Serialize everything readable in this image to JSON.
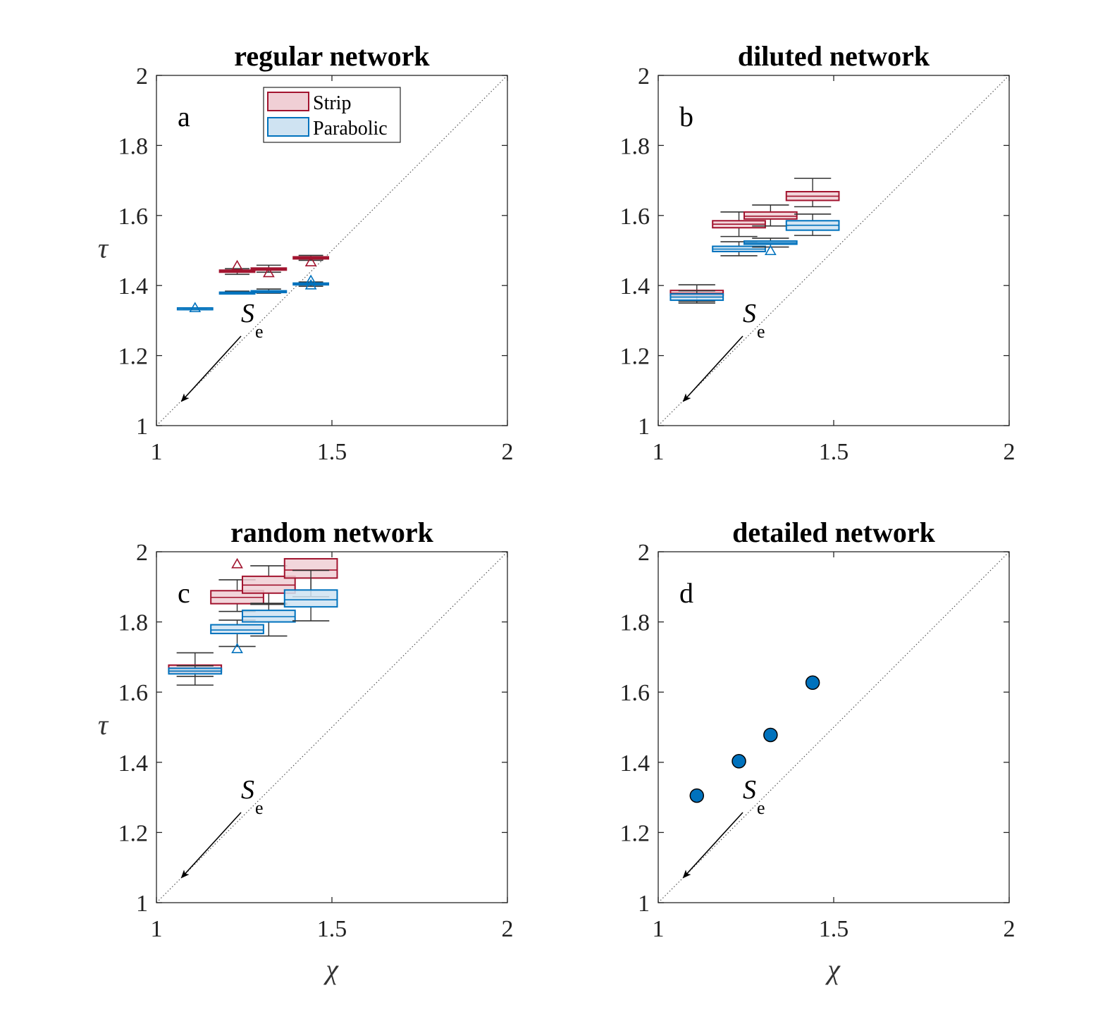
{
  "colors": {
    "strip": "#a2142f",
    "strip_fill": "#f0cfd5",
    "parabolic": "#0072bd",
    "parabolic_fill": "#cfe3f2",
    "whisker": "#333333",
    "dot": "#0072bd"
  },
  "legend": [
    {
      "label": "Strip",
      "series": "strip"
    },
    {
      "label": "Parabolic",
      "series": "parabolic"
    }
  ],
  "annotation": {
    "main": "S",
    "sub": "e"
  },
  "chart_data": [
    {
      "id": "a",
      "panel_label": "a",
      "type": "box",
      "title": "regular network",
      "xlabel": "",
      "ylabel": "τ",
      "xlim": [
        1,
        2
      ],
      "ylim": [
        1,
        2
      ],
      "xticks": [
        "1",
        "1.5",
        "2"
      ],
      "yticks": [
        "1",
        "1.2",
        "1.4",
        "1.6",
        "1.8",
        "2"
      ],
      "show_legend": true,
      "boxes": [
        {
          "series": "strip",
          "chi": 1.23,
          "half_width": 0.05,
          "q1": 1.438,
          "median": 1.441,
          "q3": 1.444,
          "wlo": 1.432,
          "whi": 1.448,
          "outliers": [
            1.456
          ]
        },
        {
          "series": "strip",
          "chi": 1.32,
          "half_width": 0.05,
          "q1": 1.444,
          "median": 1.447,
          "q3": 1.45,
          "wlo": 1.438,
          "whi": 1.458,
          "outliers": [
            1.436
          ]
        },
        {
          "series": "strip",
          "chi": 1.44,
          "half_width": 0.05,
          "q1": 1.476,
          "median": 1.479,
          "q3": 1.482,
          "wlo": 1.472,
          "whi": 1.486,
          "outliers": [
            1.467
          ]
        },
        {
          "series": "parabolic",
          "chi": 1.11,
          "half_width": 0.05,
          "q1": 1.334,
          "median": 1.335,
          "q3": 1.336,
          "wlo": 1.334,
          "whi": 1.336,
          "outliers": [
            1.336
          ]
        },
        {
          "series": "parabolic",
          "chi": 1.23,
          "half_width": 0.05,
          "q1": 1.378,
          "median": 1.379,
          "q3": 1.381,
          "wlo": 1.376,
          "whi": 1.384,
          "outliers": []
        },
        {
          "series": "parabolic",
          "chi": 1.32,
          "half_width": 0.05,
          "q1": 1.381,
          "median": 1.383,
          "q3": 1.385,
          "wlo": 1.378,
          "whi": 1.39,
          "outliers": []
        },
        {
          "series": "parabolic",
          "chi": 1.44,
          "half_width": 0.05,
          "q1": 1.403,
          "median": 1.405,
          "q3": 1.407,
          "wlo": 1.398,
          "whi": 1.41,
          "outliers": [
            1.414,
            1.401
          ]
        }
      ],
      "points": []
    },
    {
      "id": "b",
      "panel_label": "b",
      "type": "box",
      "title": "diluted network",
      "xlabel": "",
      "ylabel": "",
      "xlim": [
        1,
        2
      ],
      "ylim": [
        1,
        2
      ],
      "xticks": [
        "1",
        "1.5",
        "2"
      ],
      "yticks": [
        "1",
        "1.2",
        "1.4",
        "1.6",
        "1.8",
        "2"
      ],
      "show_legend": false,
      "boxes": [
        {
          "series": "strip",
          "chi": 1.11,
          "half_width": 0.075,
          "q1": 1.372,
          "median": 1.378,
          "q3": 1.386,
          "wlo": 1.355,
          "whi": 1.402,
          "outliers": []
        },
        {
          "series": "strip",
          "chi": 1.23,
          "half_width": 0.075,
          "q1": 1.565,
          "median": 1.575,
          "q3": 1.585,
          "wlo": 1.54,
          "whi": 1.61,
          "outliers": []
        },
        {
          "series": "strip",
          "chi": 1.32,
          "half_width": 0.075,
          "q1": 1.59,
          "median": 1.598,
          "q3": 1.61,
          "wlo": 1.57,
          "whi": 1.63,
          "outliers": []
        },
        {
          "series": "strip",
          "chi": 1.44,
          "half_width": 0.075,
          "q1": 1.643,
          "median": 1.655,
          "q3": 1.668,
          "wlo": 1.625,
          "whi": 1.706,
          "outliers": []
        },
        {
          "series": "parabolic",
          "chi": 1.11,
          "half_width": 0.075,
          "q1": 1.358,
          "median": 1.367,
          "q3": 1.376,
          "wlo": 1.35,
          "whi": 1.385,
          "outliers": []
        },
        {
          "series": "parabolic",
          "chi": 1.23,
          "half_width": 0.075,
          "q1": 1.497,
          "median": 1.504,
          "q3": 1.512,
          "wlo": 1.485,
          "whi": 1.525,
          "outliers": []
        },
        {
          "series": "parabolic",
          "chi": 1.32,
          "half_width": 0.075,
          "q1": 1.518,
          "median": 1.522,
          "q3": 1.527,
          "wlo": 1.51,
          "whi": 1.535,
          "outliers": [
            1.499
          ]
        },
        {
          "series": "parabolic",
          "chi": 1.44,
          "half_width": 0.075,
          "q1": 1.558,
          "median": 1.572,
          "q3": 1.585,
          "wlo": 1.543,
          "whi": 1.604,
          "outliers": []
        }
      ],
      "points": []
    },
    {
      "id": "c",
      "panel_label": "c",
      "type": "box",
      "title": "random network",
      "xlabel": "χ",
      "ylabel": "τ",
      "xlim": [
        1,
        2
      ],
      "ylim": [
        1,
        2
      ],
      "xticks": [
        "1",
        "1.5",
        "2"
      ],
      "yticks": [
        "1",
        "1.2",
        "1.4",
        "1.6",
        "1.8",
        "2"
      ],
      "show_legend": false,
      "boxes": [
        {
          "series": "strip",
          "chi": 1.11,
          "half_width": 0.075,
          "q1": 1.658,
          "median": 1.667,
          "q3": 1.677,
          "wlo": 1.62,
          "whi": 1.712,
          "outliers": []
        },
        {
          "series": "strip",
          "chi": 1.23,
          "half_width": 0.075,
          "q1": 1.852,
          "median": 1.87,
          "q3": 1.889,
          "wlo": 1.83,
          "whi": 1.92,
          "outliers": [
            1.965
          ]
        },
        {
          "series": "strip",
          "chi": 1.32,
          "half_width": 0.075,
          "q1": 1.882,
          "median": 1.905,
          "q3": 1.93,
          "wlo": 1.85,
          "whi": 1.96,
          "outliers": []
        },
        {
          "series": "strip",
          "chi": 1.44,
          "half_width": 0.075,
          "q1": 1.925,
          "median": 1.948,
          "q3": 1.98,
          "wlo": 1.872,
          "whi": 1.98,
          "outliers": []
        },
        {
          "series": "parabolic",
          "chi": 1.11,
          "half_width": 0.075,
          "q1": 1.652,
          "median": 1.66,
          "q3": 1.668,
          "wlo": 1.645,
          "whi": 1.675,
          "outliers": []
        },
        {
          "series": "parabolic",
          "chi": 1.23,
          "half_width": 0.075,
          "q1": 1.767,
          "median": 1.777,
          "q3": 1.792,
          "wlo": 1.73,
          "whi": 1.805,
          "outliers": [
            1.723
          ]
        },
        {
          "series": "parabolic",
          "chi": 1.32,
          "half_width": 0.075,
          "q1": 1.8,
          "median": 1.815,
          "q3": 1.833,
          "wlo": 1.76,
          "whi": 1.853,
          "outliers": []
        },
        {
          "series": "parabolic",
          "chi": 1.44,
          "half_width": 0.075,
          "q1": 1.843,
          "median": 1.863,
          "q3": 1.891,
          "wlo": 1.803,
          "whi": 1.947,
          "outliers": []
        }
      ],
      "points": []
    },
    {
      "id": "d",
      "panel_label": "d",
      "type": "scatter",
      "title": "detailed network",
      "xlabel": "χ",
      "ylabel": "",
      "xlim": [
        1,
        2
      ],
      "ylim": [
        1,
        2
      ],
      "xticks": [
        "1",
        "1.5",
        "2"
      ],
      "yticks": [
        "1",
        "1.2",
        "1.4",
        "1.6",
        "1.8",
        "2"
      ],
      "show_legend": false,
      "boxes": [],
      "points": [
        {
          "chi": 1.11,
          "tau": 1.305
        },
        {
          "chi": 1.23,
          "tau": 1.403
        },
        {
          "chi": 1.32,
          "tau": 1.478
        },
        {
          "chi": 1.44,
          "tau": 1.627
        }
      ]
    }
  ]
}
